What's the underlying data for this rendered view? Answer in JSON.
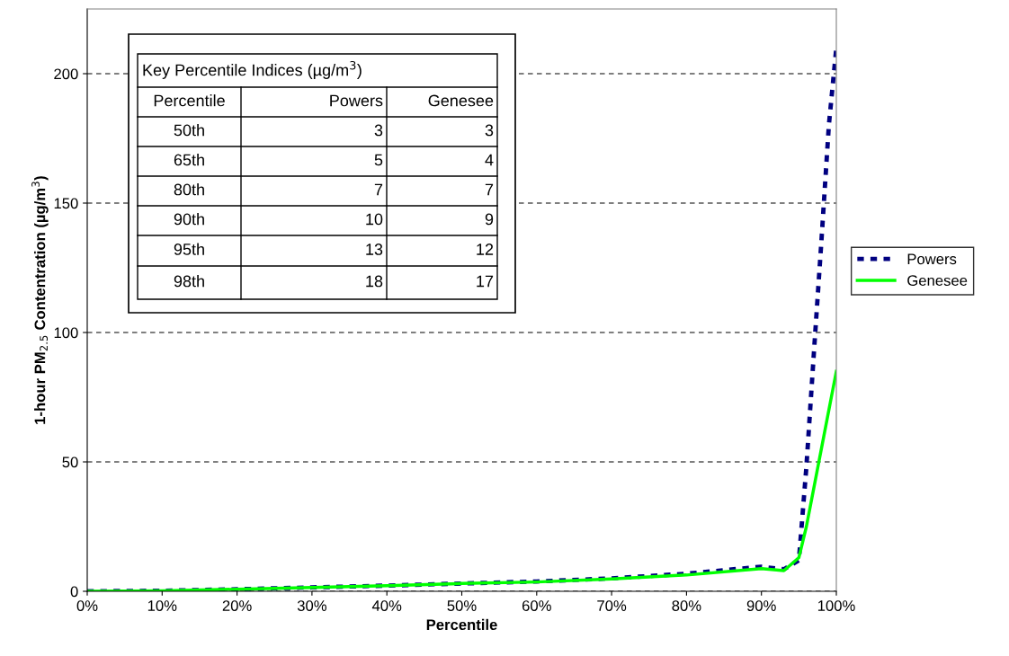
{
  "chart_data": {
    "type": "line",
    "xlabel": "Percentile",
    "ylabel": "1-hour PM$_{2.5}$ Contentration (µg/m$^{3}$)",
    "x": [
      0,
      10,
      20,
      30,
      40,
      50,
      60,
      70,
      80,
      90,
      93,
      95,
      96,
      97,
      98,
      99,
      100
    ],
    "series": [
      {
        "name": "Powers",
        "color": "#000080",
        "line_style": "dotted",
        "values": [
          0,
          0.2,
          0.8,
          1.5,
          2.2,
          3,
          3.8,
          5,
          6.8,
          9.5,
          8.5,
          12,
          48,
          92,
          135,
          180,
          210
        ]
      },
      {
        "name": "Genesee",
        "color": "#00ff00",
        "line_style": "solid",
        "values": [
          0,
          0.2,
          0.8,
          1.5,
          2.2,
          3,
          3.6,
          4.8,
          6.3,
          8.8,
          8,
          13,
          25,
          40,
          55,
          70,
          85
        ]
      }
    ],
    "xlim": [
      0,
      100
    ],
    "ylim": [
      0,
      225
    ],
    "xticks": [
      {
        "value": 0,
        "label": "0%"
      },
      {
        "value": 10,
        "label": "10%"
      },
      {
        "value": 20,
        "label": "20%"
      },
      {
        "value": 30,
        "label": "30%"
      },
      {
        "value": 40,
        "label": "40%"
      },
      {
        "value": 50,
        "label": "50%"
      },
      {
        "value": 60,
        "label": "60%"
      },
      {
        "value": 70,
        "label": "70%"
      },
      {
        "value": 80,
        "label": "80%"
      },
      {
        "value": 90,
        "label": "90%"
      },
      {
        "value": 100,
        "label": "100%"
      }
    ],
    "yticks": [
      0,
      50,
      100,
      150,
      200
    ],
    "grid": "y",
    "legend": "right",
    "marker": "none",
    "annotations": [
      "Key Percentile Indices (µg/m$^{3}$)",
      "Percentile",
      "Powers",
      "Genesee",
      "50th",
      "3",
      "3",
      "65th",
      "5",
      "4",
      "80th",
      "7",
      "7",
      "90th",
      "10",
      "9",
      "95th",
      "13",
      "12",
      "98th",
      "18",
      "17"
    ]
  }
}
